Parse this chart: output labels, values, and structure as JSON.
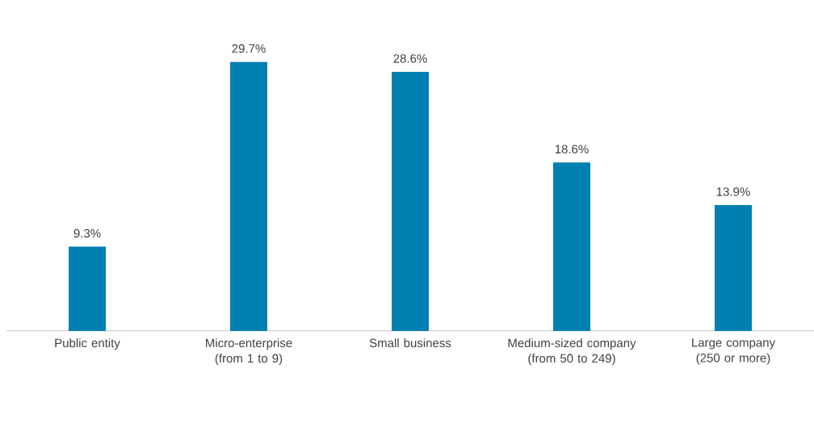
{
  "chart_data": {
    "type": "bar",
    "categories": [
      "Public entity",
      "Micro-enterprise (from 1 to 9)",
      "Small business",
      "Medium-sized company (from 50 to 249)",
      "Large company (250 or more)"
    ],
    "values": [
      9.3,
      29.7,
      28.6,
      18.6,
      13.9
    ],
    "value_labels": [
      "9.3%",
      "29.7%",
      "28.6%",
      "18.6%",
      "13.9%"
    ],
    "color": "#0080b0"
  }
}
